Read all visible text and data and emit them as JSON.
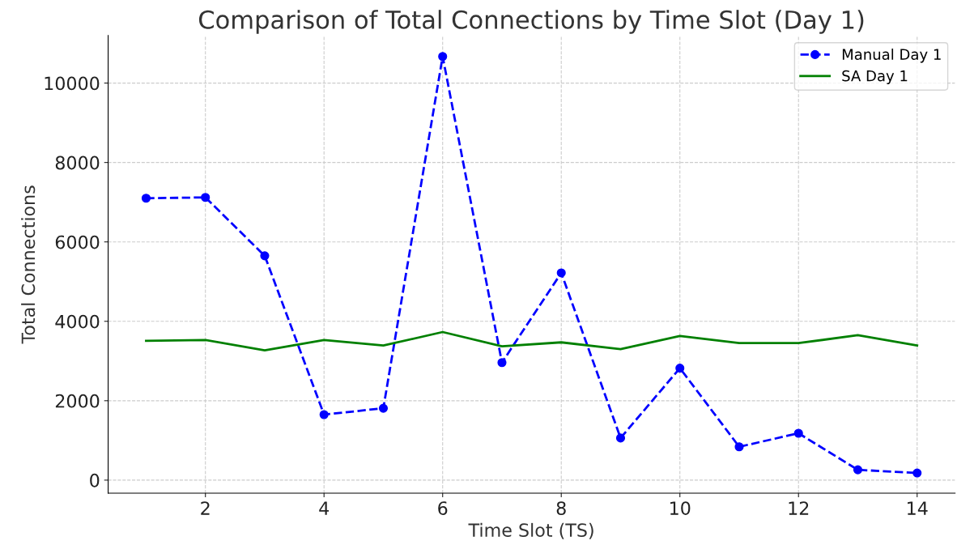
{
  "chart_data": {
    "type": "line",
    "title": "Comparison of Total Connections by Time Slot (Day 1)",
    "xlabel": "Time Slot (TS)",
    "ylabel": "Total Connections",
    "x": [
      1,
      2,
      3,
      4,
      5,
      6,
      7,
      8,
      9,
      10,
      11,
      12,
      13,
      14
    ],
    "series": [
      {
        "name": "Manual Day 1",
        "color": "#0000ff",
        "marker": "circle",
        "line_style": "dashed",
        "values": [
          7100,
          7120,
          5650,
          1650,
          1810,
          10670,
          2960,
          5220,
          1060,
          2820,
          840,
          1180,
          260,
          180
        ]
      },
      {
        "name": "SA Day 1",
        "color": "#008000",
        "marker": "none",
        "line_style": "solid",
        "values": [
          3510,
          3530,
          3270,
          3530,
          3390,
          3730,
          3370,
          3470,
          3300,
          3630,
          3450,
          3450,
          3650,
          3390
        ]
      }
    ],
    "xlim": [
      0.36,
      14.64
    ],
    "xticks": [
      2,
      4,
      6,
      8,
      10,
      12,
      14
    ],
    "ylim": [
      -330,
      11200
    ],
    "yticks": [
      0,
      2000,
      4000,
      6000,
      8000,
      10000
    ],
    "grid": true,
    "legend": "top right"
  }
}
